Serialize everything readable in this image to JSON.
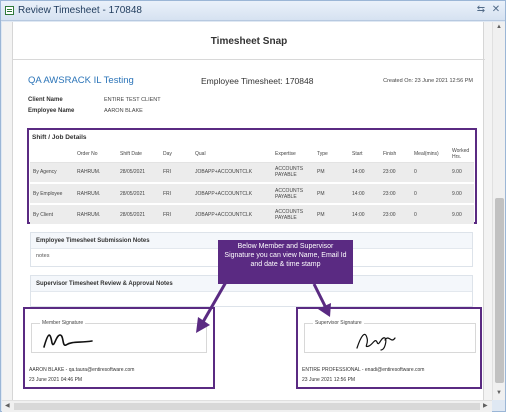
{
  "window": {
    "title": "Review Timesheet - 170848",
    "app_icon": "timesheet-icon",
    "restore_glyph": "⇆",
    "close_glyph": "✕"
  },
  "snap": {
    "header": "Timesheet Snap",
    "company": "QA AWSRACK IL Testing",
    "employee_timesheet": "Employee Timesheet: 170848",
    "created_on": "Created On: 23 June 2021 12:56 PM",
    "info": [
      {
        "label": "Client Name",
        "value": "ENTIRE TEST CLIENT"
      },
      {
        "label": "Employee Name",
        "value": "AARON BLAKE"
      }
    ]
  },
  "shift": {
    "title": "Shift / Job Details",
    "columns": [
      "",
      "Order No",
      "Shift Date",
      "Day",
      "Qual",
      "Expertise",
      "Type",
      "Start",
      "Finish",
      "Meal(mins)",
      "Worked Hrs."
    ],
    "rows": [
      [
        "By Agency",
        "RAHRUM.",
        "28/05/2021",
        "FRI",
        "JOBAPP+ACCOUNTCLK",
        "ACCOUNTS PAYABLE",
        "PM",
        "14:00",
        "23:00",
        "0",
        "9.00"
      ],
      [
        "By Employee",
        "RAHRUM.",
        "28/05/2021",
        "FRI",
        "JOBAPP+ACCOUNTCLK",
        "ACCOUNTS PAYABLE",
        "PM",
        "14:00",
        "23:00",
        "0",
        "9.00"
      ],
      [
        "By Client",
        "RAHRUM.",
        "28/05/2021",
        "FRI",
        "JOBAPP+ACCOUNTCLK",
        "ACCOUNTS PAYABLE",
        "PM",
        "14:00",
        "23:00",
        "0",
        "9.00"
      ]
    ]
  },
  "notes": {
    "employee_title": "Employee Timesheet Submission Notes",
    "employee_body": "notes",
    "supervisor_title": "Supervisor Timesheet Review & Approval Notes"
  },
  "callout": "Below Member and Supervisor Signature you can view Name, Email Id and date & time stamp",
  "member_sig": {
    "legend": "Member Signature",
    "name_email": "AARON BLAKE - qa.taura@entiresoftware.com",
    "timestamp": "23 June 2021 04:46 PM"
  },
  "supervisor_sig": {
    "legend": "Supervisor Signature",
    "name_email": "ENTIRE PROFESSIONAL - enadi@entiresoftware.com",
    "timestamp": "23 June 2021 12:56 PM"
  },
  "scrollbars": {
    "up": "▲",
    "down": "▼",
    "left": "◀",
    "right": "▶"
  },
  "colors": {
    "accent": "#5a2a82",
    "link": "#2b74b8"
  }
}
